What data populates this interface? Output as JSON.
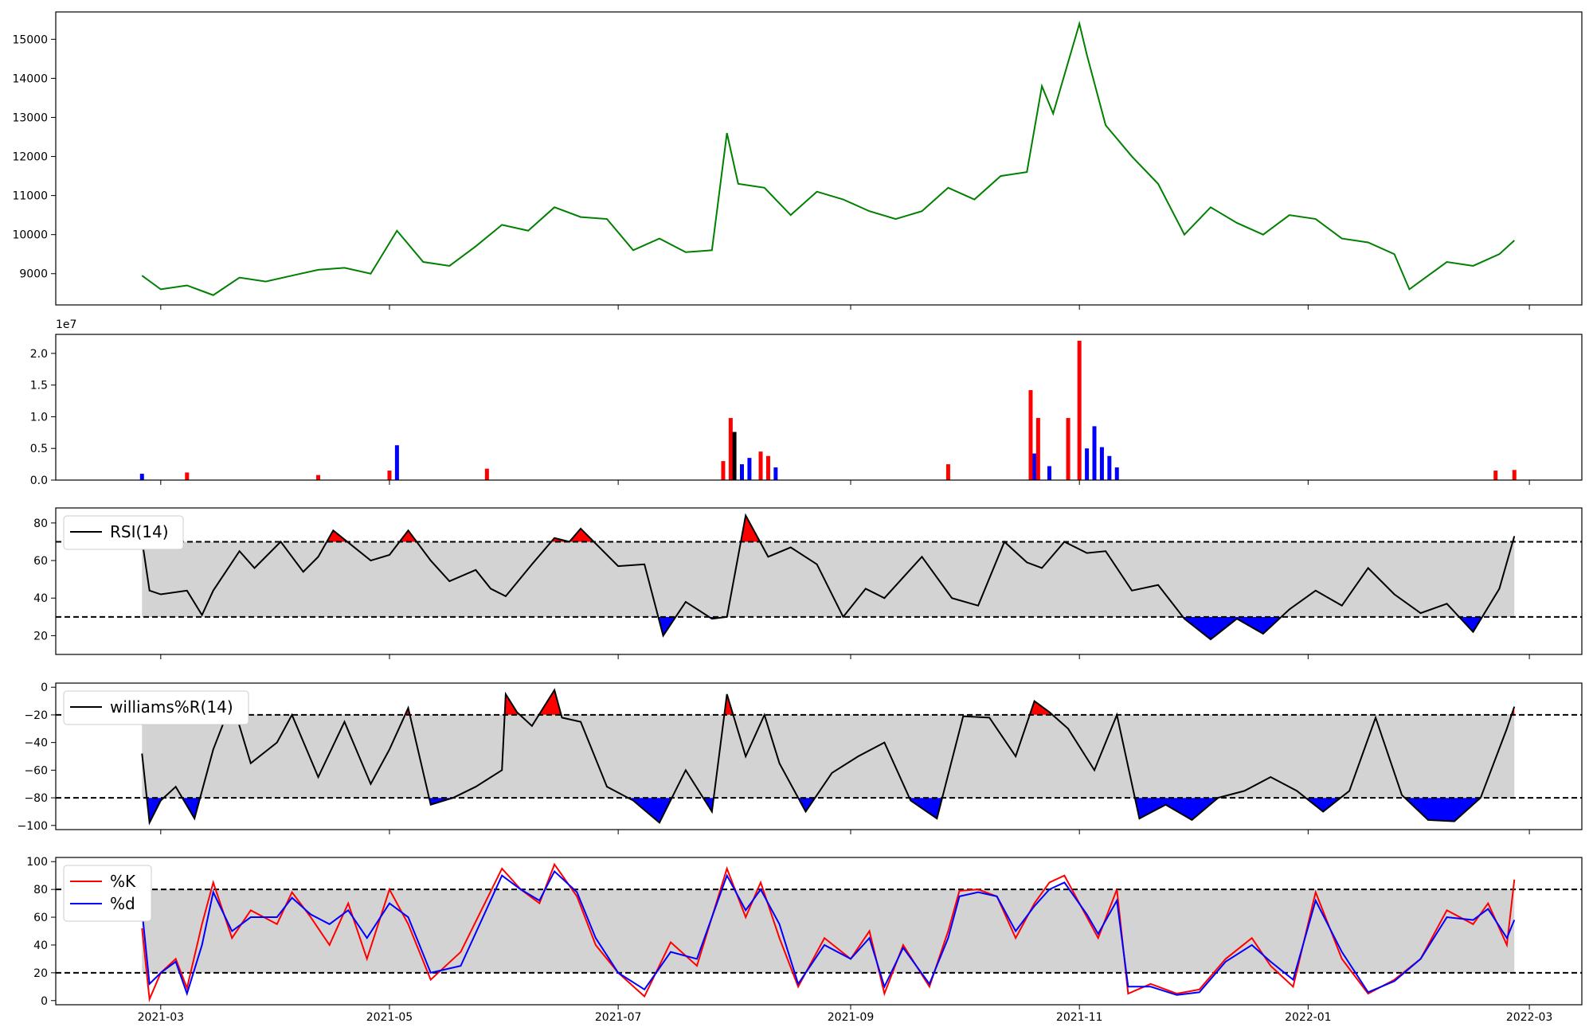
{
  "chart_data": [
    {
      "type": "line",
      "color": "#008000",
      "ylim": [
        8200,
        15700
      ],
      "yticks": [
        9000,
        10000,
        11000,
        12000,
        13000,
        14000,
        15000
      ],
      "x": [
        "2021-02-24",
        "2021-03-01",
        "2021-03-08",
        "2021-03-15",
        "2021-03-22",
        "2021-03-29",
        "2021-04-05",
        "2021-04-12",
        "2021-04-19",
        "2021-04-26",
        "2021-05-03",
        "2021-05-10",
        "2021-05-17",
        "2021-05-24",
        "2021-05-31",
        "2021-06-07",
        "2021-06-14",
        "2021-06-21",
        "2021-06-28",
        "2021-07-05",
        "2021-07-12",
        "2021-07-19",
        "2021-07-26",
        "2021-07-30",
        "2021-08-02",
        "2021-08-09",
        "2021-08-16",
        "2021-08-23",
        "2021-08-30",
        "2021-09-06",
        "2021-09-13",
        "2021-09-20",
        "2021-09-27",
        "2021-10-04",
        "2021-10-11",
        "2021-10-18",
        "2021-10-22",
        "2021-10-25",
        "2021-11-01",
        "2021-11-03",
        "2021-11-08",
        "2021-11-15",
        "2021-11-22",
        "2021-11-29",
        "2021-12-06",
        "2021-12-13",
        "2021-12-20",
        "2021-12-27",
        "2022-01-03",
        "2022-01-10",
        "2022-01-17",
        "2022-01-24",
        "2022-01-28",
        "2022-02-07",
        "2022-02-14",
        "2022-02-21",
        "2022-02-25"
      ],
      "values": [
        8950,
        8600,
        8700,
        8450,
        8900,
        8800,
        8950,
        9100,
        9150,
        9000,
        10100,
        9300,
        9200,
        9700,
        10250,
        10100,
        10700,
        10450,
        10400,
        9600,
        9900,
        9550,
        9600,
        12600,
        11300,
        11200,
        10500,
        11100,
        10900,
        10600,
        10400,
        10600,
        11200,
        10900,
        11500,
        11600,
        13800,
        13100,
        15400,
        14600,
        12800,
        12000,
        11300,
        10000,
        10700,
        10300,
        10000,
        10500,
        10400,
        9900,
        9800,
        9500,
        8600,
        9300,
        9200,
        9500,
        9850
      ],
      "xlim": [
        "2021-02-01",
        "2022-03-15"
      ]
    },
    {
      "type": "bar",
      "offset_text": "1e7",
      "ylim": [
        0,
        2.3
      ],
      "yticks": [
        0.0,
        0.5,
        1.0,
        1.5,
        2.0
      ],
      "series": [
        {
          "color": "#0000ff",
          "x": [
            "2021-02-24",
            "2021-05-03",
            "2021-08-03",
            "2021-08-05",
            "2021-08-12",
            "2021-10-20",
            "2021-10-24",
            "2021-11-03",
            "2021-11-05",
            "2021-11-07",
            "2021-11-09",
            "2021-11-11"
          ],
          "values": [
            0.1,
            0.55,
            0.25,
            0.35,
            0.2,
            0.42,
            0.22,
            0.5,
            0.85,
            0.52,
            0.38,
            0.2
          ]
        },
        {
          "color": "#ff0000",
          "x": [
            "2021-03-08",
            "2021-04-12",
            "2021-05-01",
            "2021-05-27",
            "2021-07-29",
            "2021-07-31",
            "2021-08-08",
            "2021-08-10",
            "2021-09-27",
            "2021-10-19",
            "2021-10-21",
            "2021-10-29",
            "2021-11-01",
            "2022-02-20",
            "2022-02-25"
          ],
          "values": [
            0.12,
            0.08,
            0.15,
            0.18,
            0.3,
            0.98,
            0.45,
            0.38,
            0.25,
            1.42,
            0.98,
            0.98,
            2.2,
            0.15,
            0.16
          ]
        },
        {
          "color": "#000000",
          "x": [
            "2021-08-01"
          ],
          "values": [
            0.76
          ]
        }
      ],
      "xlim": [
        "2021-02-01",
        "2022-03-15"
      ]
    },
    {
      "type": "area",
      "legend": [
        "RSI(14)"
      ],
      "line_color": "#000000",
      "ylim": [
        10,
        88
      ],
      "yticks": [
        20,
        40,
        60,
        80
      ],
      "thresholds": [
        30,
        70
      ],
      "x": [
        "2021-02-24",
        "2021-02-26",
        "2021-03-01",
        "2021-03-08",
        "2021-03-12",
        "2021-03-15",
        "2021-03-22",
        "2021-03-26",
        "2021-04-02",
        "2021-04-08",
        "2021-04-12",
        "2021-04-16",
        "2021-04-26",
        "2021-05-01",
        "2021-05-06",
        "2021-05-12",
        "2021-05-17",
        "2021-05-24",
        "2021-05-28",
        "2021-06-01",
        "2021-06-08",
        "2021-06-14",
        "2021-06-18",
        "2021-06-21",
        "2021-07-01",
        "2021-07-08",
        "2021-07-13",
        "2021-07-19",
        "2021-07-26",
        "2021-07-30",
        "2021-08-04",
        "2021-08-10",
        "2021-08-16",
        "2021-08-23",
        "2021-08-30",
        "2021-09-05",
        "2021-09-10",
        "2021-09-20",
        "2021-09-28",
        "2021-10-05",
        "2021-10-12",
        "2021-10-18",
        "2021-10-22",
        "2021-10-28",
        "2021-11-03",
        "2021-11-08",
        "2021-11-15",
        "2021-11-22",
        "2021-11-29",
        "2021-12-06",
        "2021-12-13",
        "2021-12-20",
        "2021-12-27",
        "2022-01-03",
        "2022-01-10",
        "2022-01-17",
        "2022-01-24",
        "2022-01-31",
        "2022-02-07",
        "2022-02-14",
        "2022-02-21",
        "2022-02-25"
      ],
      "values": [
        71,
        44,
        42,
        44,
        31,
        44,
        65,
        56,
        70,
        54,
        62,
        76,
        60,
        63,
        76,
        60,
        49,
        55,
        45,
        41,
        58,
        72,
        70,
        77,
        57,
        58,
        20,
        38,
        29,
        30,
        84,
        62,
        67,
        58,
        30,
        45,
        40,
        62,
        40,
        36,
        70,
        59,
        56,
        70,
        64,
        65,
        44,
        47,
        29,
        18,
        29,
        21,
        34,
        44,
        36,
        56,
        42,
        32,
        37,
        22,
        45,
        73
      ],
      "xlim": [
        "2021-02-01",
        "2022-03-15"
      ]
    },
    {
      "type": "area",
      "legend": [
        "williams%R(14)"
      ],
      "line_color": "#000000",
      "ylim": [
        -103,
        3
      ],
      "yticks": [
        0,
        -20,
        -40,
        -60,
        -80,
        -100
      ],
      "thresholds": [
        -20,
        -80
      ],
      "x": [
        "2021-02-24",
        "2021-02-26",
        "2021-03-01",
        "2021-03-05",
        "2021-03-10",
        "2021-03-15",
        "2021-03-20",
        "2021-03-25",
        "2021-04-01",
        "2021-04-05",
        "2021-04-12",
        "2021-04-19",
        "2021-04-26",
        "2021-05-01",
        "2021-05-06",
        "2021-05-12",
        "2021-05-18",
        "2021-05-24",
        "2021-05-31",
        "2021-06-01",
        "2021-06-04",
        "2021-06-08",
        "2021-06-14",
        "2021-06-16",
        "2021-06-21",
        "2021-06-28",
        "2021-07-05",
        "2021-07-12",
        "2021-07-19",
        "2021-07-26",
        "2021-07-30",
        "2021-08-04",
        "2021-08-09",
        "2021-08-13",
        "2021-08-20",
        "2021-08-27",
        "2021-09-03",
        "2021-09-10",
        "2021-09-17",
        "2021-09-24",
        "2021-10-01",
        "2021-10-08",
        "2021-10-15",
        "2021-10-20",
        "2021-10-24",
        "2021-10-29",
        "2021-11-05",
        "2021-11-11",
        "2021-11-17",
        "2021-11-24",
        "2021-12-01",
        "2021-12-08",
        "2021-12-15",
        "2021-12-22",
        "2021-12-29",
        "2022-01-05",
        "2022-01-12",
        "2022-01-19",
        "2022-01-26",
        "2022-02-02",
        "2022-02-09",
        "2022-02-16",
        "2022-02-23",
        "2022-02-25"
      ],
      "values": [
        -48,
        -98,
        -82,
        -72,
        -95,
        -45,
        -10,
        -55,
        -40,
        -20,
        -65,
        -25,
        -70,
        -45,
        -15,
        -85,
        -80,
        -72,
        -60,
        -5,
        -18,
        -28,
        -2,
        -22,
        -25,
        -72,
        -82,
        -98,
        -60,
        -90,
        -5,
        -50,
        -20,
        -55,
        -90,
        -62,
        -50,
        -40,
        -82,
        -95,
        -21,
        -22,
        -50,
        -10,
        -18,
        -30,
        -60,
        -20,
        -95,
        -85,
        -96,
        -80,
        -75,
        -65,
        -75,
        -90,
        -75,
        -22,
        -78,
        -96,
        -97,
        -80,
        -30,
        -14
      ],
      "xlim": [
        "2021-02-01",
        "2022-03-15"
      ]
    },
    {
      "type": "line",
      "legend": [
        "%K",
        "%d"
      ],
      "ylim": [
        -3,
        103
      ],
      "yticks": [
        0,
        20,
        40,
        60,
        80,
        100
      ],
      "thresholds": [
        20,
        80
      ],
      "series": [
        {
          "name": "%K",
          "color": "#ff0000",
          "values": [
            52,
            1,
            20,
            30,
            9,
            55,
            85,
            45,
            65,
            55,
            78,
            60,
            40,
            70,
            30,
            80,
            55,
            15,
            35,
            95,
            80,
            70,
            98,
            75,
            40,
            20,
            3,
            42,
            25,
            95,
            60,
            85,
            45,
            10,
            45,
            30,
            50,
            5,
            40,
            10,
            50,
            79,
            80,
            75,
            45,
            70,
            85,
            90,
            60,
            45,
            80,
            5,
            12,
            5,
            8,
            30,
            45,
            25,
            10,
            78,
            30,
            5,
            15,
            30,
            65,
            55,
            70,
            40,
            87
          ]
        },
        {
          "name": "%d",
          "color": "#0000ff",
          "values": [
            65,
            12,
            20,
            28,
            5,
            40,
            78,
            50,
            60,
            60,
            74,
            62,
            55,
            65,
            45,
            70,
            60,
            20,
            25,
            90,
            80,
            72,
            93,
            78,
            45,
            20,
            8,
            35,
            30,
            90,
            65,
            80,
            55,
            12,
            40,
            30,
            45,
            10,
            38,
            12,
            45,
            75,
            78,
            75,
            50,
            68,
            80,
            85,
            62,
            48,
            72,
            10,
            10,
            4,
            6,
            28,
            40,
            28,
            15,
            72,
            35,
            6,
            14,
            30,
            60,
            58,
            66,
            45,
            58
          ]
        }
      ],
      "x": [
        "2021-02-24",
        "2021-02-26",
        "2021-03-01",
        "2021-03-05",
        "2021-03-08",
        "2021-03-12",
        "2021-03-15",
        "2021-03-20",
        "2021-03-25",
        "2021-04-01",
        "2021-04-05",
        "2021-04-10",
        "2021-04-15",
        "2021-04-20",
        "2021-04-25",
        "2021-05-01",
        "2021-05-06",
        "2021-05-12",
        "2021-05-20",
        "2021-05-31",
        "2021-06-05",
        "2021-06-10",
        "2021-06-14",
        "2021-06-20",
        "2021-06-25",
        "2021-07-01",
        "2021-07-08",
        "2021-07-15",
        "2021-07-22",
        "2021-07-30",
        "2021-08-04",
        "2021-08-08",
        "2021-08-13",
        "2021-08-18",
        "2021-08-25",
        "2021-09-01",
        "2021-09-06",
        "2021-09-10",
        "2021-09-15",
        "2021-09-22",
        "2021-09-27",
        "2021-09-30",
        "2021-10-05",
        "2021-10-10",
        "2021-10-15",
        "2021-10-20",
        "2021-10-24",
        "2021-10-28",
        "2021-11-03",
        "2021-11-06",
        "2021-11-11",
        "2021-11-14",
        "2021-11-20",
        "2021-11-27",
        "2021-12-03",
        "2021-12-10",
        "2021-12-17",
        "2021-12-22",
        "2021-12-28",
        "2022-01-03",
        "2022-01-10",
        "2022-01-17",
        "2022-01-24",
        "2022-01-31",
        "2022-02-07",
        "2022-02-14",
        "2022-02-18",
        "2022-02-23",
        "2022-02-25"
      ],
      "xlim": [
        "2021-02-01",
        "2022-03-15"
      ]
    }
  ],
  "x_tick_labels": [
    {
      "date": "2021-03-01",
      "label": "2021-03"
    },
    {
      "date": "2021-05-01",
      "label": "2021-05"
    },
    {
      "date": "2021-07-01",
      "label": "2021-07"
    },
    {
      "date": "2021-09-01",
      "label": "2021-09"
    },
    {
      "date": "2021-11-01",
      "label": "2021-11"
    },
    {
      "date": "2022-01-01",
      "label": "2022-01"
    },
    {
      "date": "2022-03-01",
      "label": "2022-03"
    }
  ]
}
